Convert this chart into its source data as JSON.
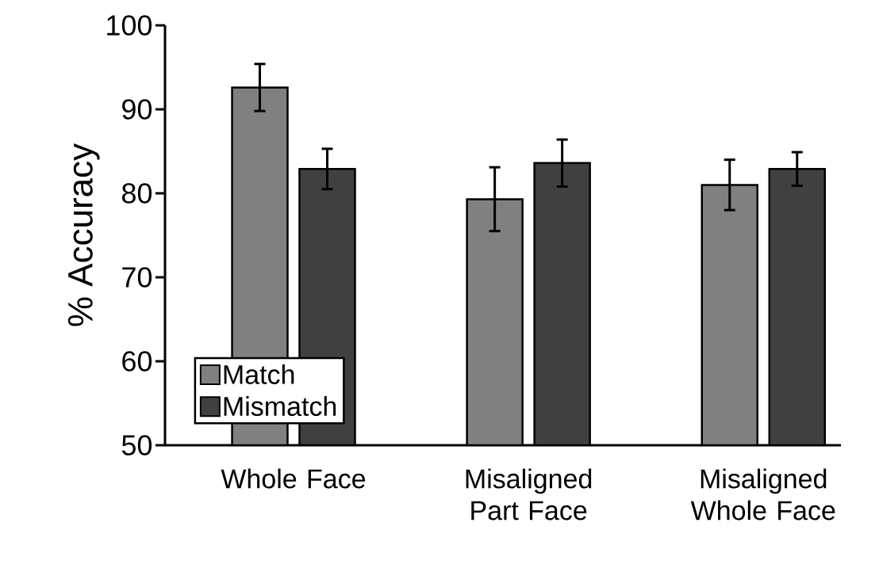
{
  "chart_data": {
    "type": "bar",
    "ylabel": "% Accuracy",
    "categories": [
      "Whole Face",
      "Misaligned Part Face",
      "Misaligned Whole Face"
    ],
    "series": [
      {
        "name": "Match",
        "color": "#808080",
        "values": [
          92.6,
          79.3,
          81.0
        ],
        "errors": [
          2.8,
          3.8,
          3.0
        ]
      },
      {
        "name": "Mismatch",
        "color": "#404040",
        "values": [
          82.9,
          83.6,
          82.9
        ],
        "errors": [
          2.4,
          2.8,
          2.0
        ]
      }
    ],
    "ylim": [
      50,
      100
    ],
    "yticks": [
      50,
      60,
      70,
      80,
      90,
      100
    ],
    "legend": "bottom left"
  }
}
